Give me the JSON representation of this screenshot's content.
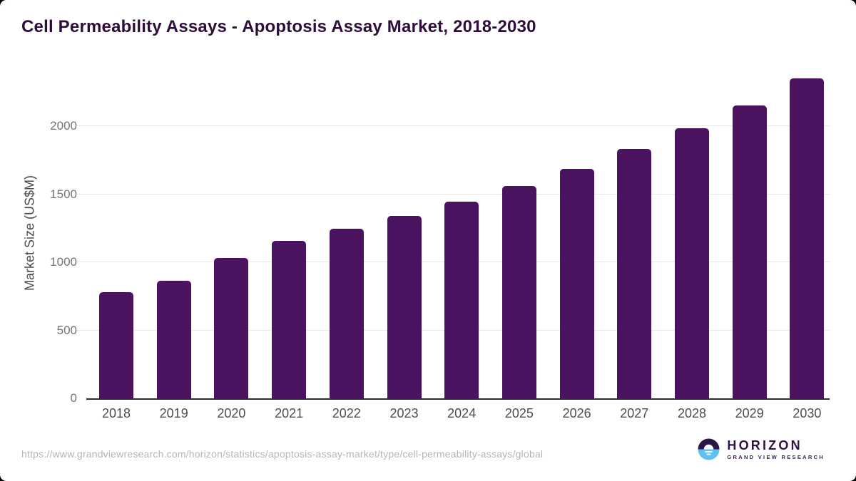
{
  "page": {
    "title": "Cell Permeability Assays - Apoptosis Assay Market, 2018-2030",
    "source_url": "https://www.grandviewresearch.com/horizon/statistics/apoptosis-assay-market/type/cell-permeability-assays/global",
    "colors": {
      "title_text": "#2e0d39",
      "axis_text": "#4d4d4d",
      "tick_text": "#747474",
      "gridline": "#e9e9e9",
      "axis_line": "#2e2e2e",
      "url_text": "#b5b5b5",
      "background": "#ffffff"
    }
  },
  "logo": {
    "name": "HORIZON",
    "subtitle": "GRAND VIEW RESEARCH",
    "icon": "horizon-sunrise-icon",
    "colors": {
      "dark_half": "#2b1747",
      "water_half": "#5ec1ef",
      "text": "#2f1343"
    }
  },
  "chart_data": {
    "type": "bar",
    "title": "Cell Permeability Assays - Apoptosis Assay Market, 2018-2030",
    "categories": [
      "2018",
      "2019",
      "2020",
      "2021",
      "2022",
      "2023",
      "2024",
      "2025",
      "2026",
      "2027",
      "2028",
      "2029",
      "2030"
    ],
    "values": [
      780,
      865,
      1030,
      1155,
      1245,
      1340,
      1445,
      1560,
      1685,
      1830,
      1985,
      2150,
      2350
    ],
    "xlabel": "",
    "ylabel": "Market Size (US$M)",
    "yticks": [
      0,
      500,
      1000,
      1500,
      2000
    ],
    "ylim": [
      0,
      2430
    ],
    "bar_color": "#4a125f",
    "grid": "horizontal",
    "legend": "none"
  }
}
